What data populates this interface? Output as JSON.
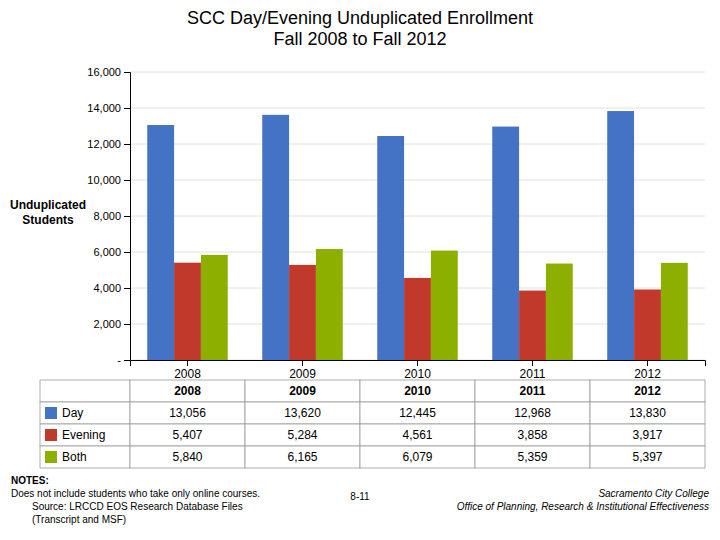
{
  "chart_data": {
    "type": "bar",
    "title": "SCC Day/Evening Unduplicated Enrollment\nFall 2008 to Fall 2012",
    "ylabel": "Unduplicated\nStudents",
    "categories": [
      "2008",
      "2009",
      "2010",
      "2011",
      "2012"
    ],
    "series": [
      {
        "name": "Day",
        "color": "#4472C4",
        "values": [
          13056,
          13620,
          12445,
          12968,
          13830
        ],
        "value_labels": [
          "13,056",
          "13,620",
          "12,445",
          "12,968",
          "13,830"
        ]
      },
      {
        "name": "Evening",
        "color": "#C0392B",
        "values": [
          5407,
          5284,
          4561,
          3858,
          3917
        ],
        "value_labels": [
          "5,407",
          "5,284",
          "4,561",
          "3,858",
          "3,917"
        ]
      },
      {
        "name": "Both",
        "color": "#8DB000",
        "values": [
          5840,
          6165,
          6079,
          5359,
          5397
        ],
        "value_labels": [
          "5,840",
          "6,165",
          "6,079",
          "5,359",
          "5,397"
        ]
      }
    ],
    "ylim": [
      0,
      16000
    ],
    "yticks": [
      {
        "value": 0,
        "label": "-"
      },
      {
        "value": 2000,
        "label": "2,000"
      },
      {
        "value": 4000,
        "label": "4,000"
      },
      {
        "value": 6000,
        "label": "6,000"
      },
      {
        "value": 8000,
        "label": "8,000"
      },
      {
        "value": 10000,
        "label": "10,000"
      },
      {
        "value": 12000,
        "label": "12,000"
      },
      {
        "value": 14000,
        "label": "14,000"
      },
      {
        "value": 16000,
        "label": "16,000"
      }
    ],
    "grid": true,
    "annotations": [
      "NOTES:",
      "Does not include students who take only online courses.",
      "Source: LRCCD EOS Research Database Files",
      "(Transcript and MSF)",
      "8-11",
      "Sacramento City College",
      "Office of Planning, Research & Institutional Effectiveness"
    ]
  }
}
